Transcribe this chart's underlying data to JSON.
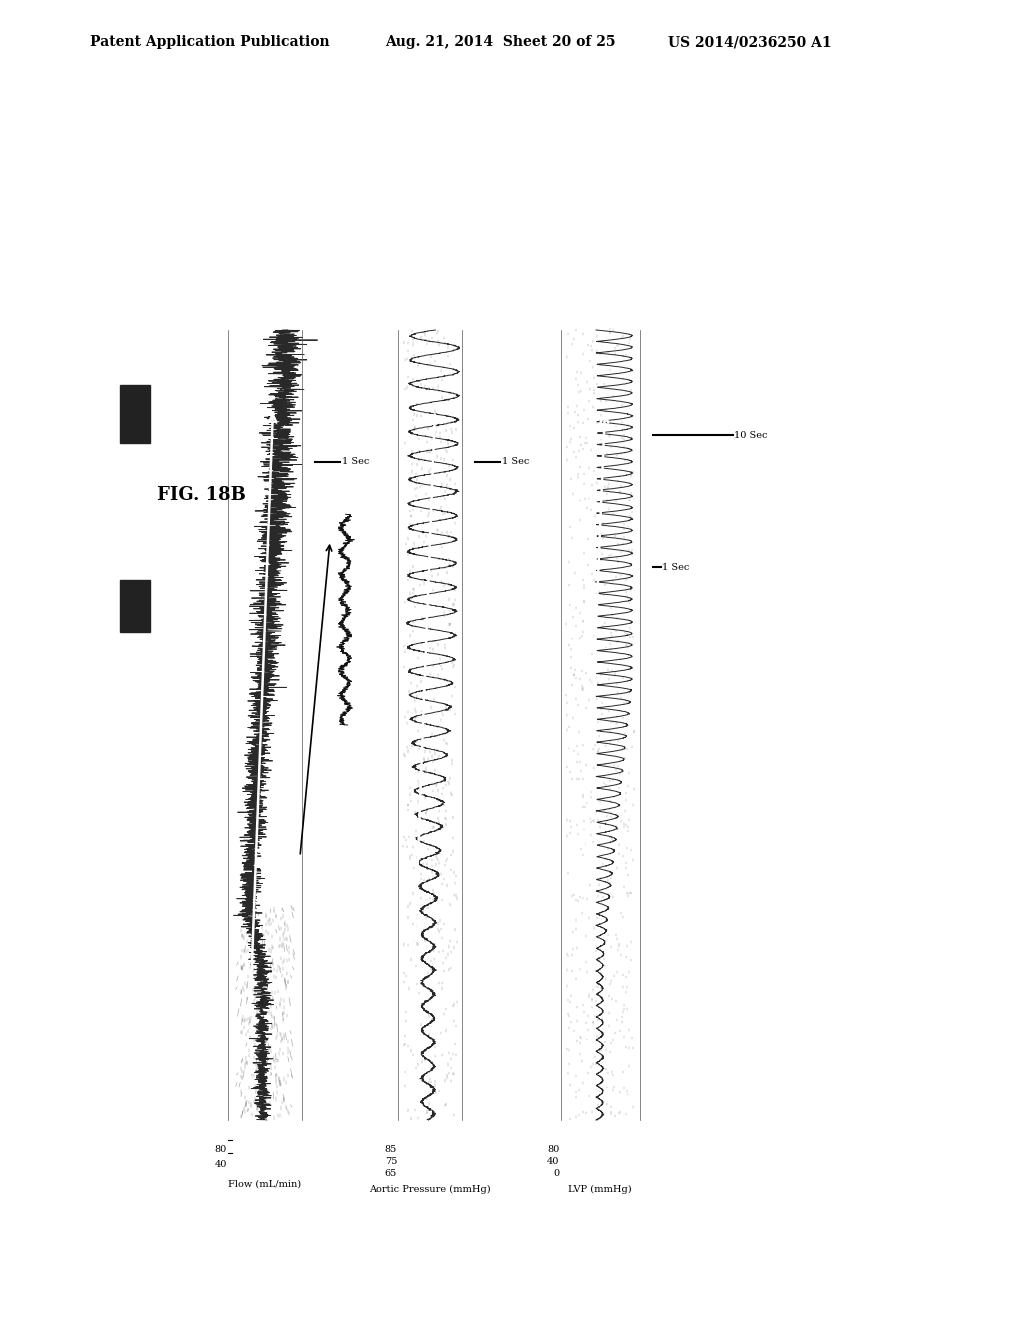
{
  "header_left": "Patent Application Publication",
  "header_mid": "Aug. 21, 2014  Sheet 20 of 25",
  "header_right": "US 2014/0236250 A1",
  "fig_label": "FIG. 18B",
  "bg_color": "#ffffff",
  "flow_ylabel": "Flow (mL/min)",
  "flow_yticks": [
    "80",
    "40"
  ],
  "flow_y_extra": "40",
  "aortic_ylabel": "Aortic Pressure (mmHg)",
  "aortic_yticks": [
    "85",
    "75",
    "65"
  ],
  "lvp_ylabel": "LVP (mmHg)",
  "lvp_yticks": [
    "80",
    "40",
    "0"
  ],
  "scale_1sec": "1 Sec",
  "scale_10sec": "10 Sec"
}
